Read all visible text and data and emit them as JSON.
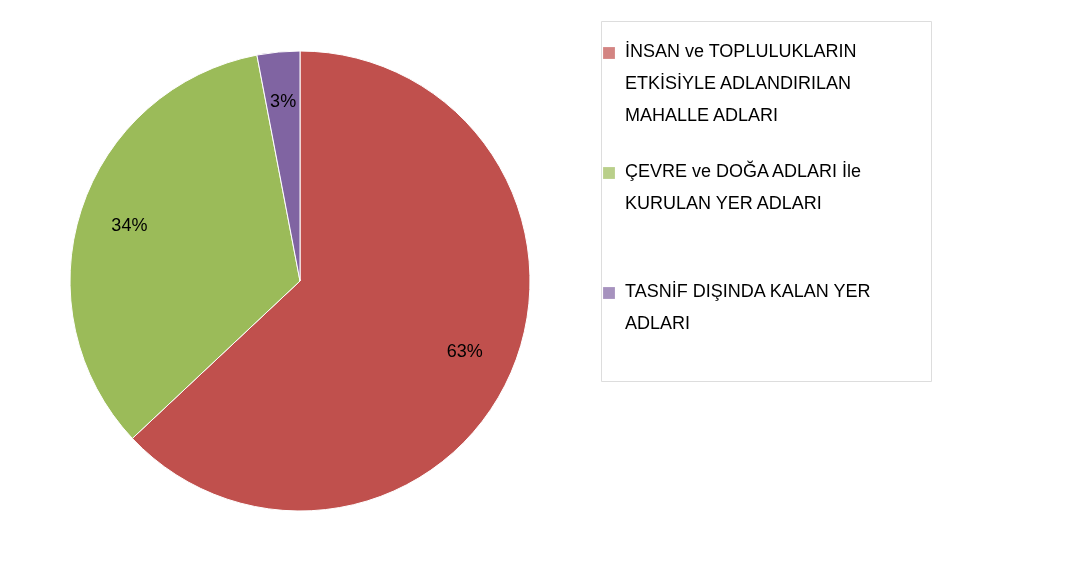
{
  "chart_data": {
    "type": "pie",
    "categories": [
      "İNSAN ve TOPLULUKLARIN ETKİSİYLE ADLANDIRILAN MAHALLE ADLARI",
      "ÇEVRE ve DOĞA ADLARI İle KURULAN YER ADLARI",
      "TASNİF DIŞINDA KALAN YER ADLARI"
    ],
    "values": [
      63,
      34,
      3
    ],
    "colors": [
      "#c0504d",
      "#9bbb59",
      "#8064a2"
    ],
    "value_labels": [
      "63%",
      "34%",
      "3%"
    ],
    "legend": "right"
  }
}
